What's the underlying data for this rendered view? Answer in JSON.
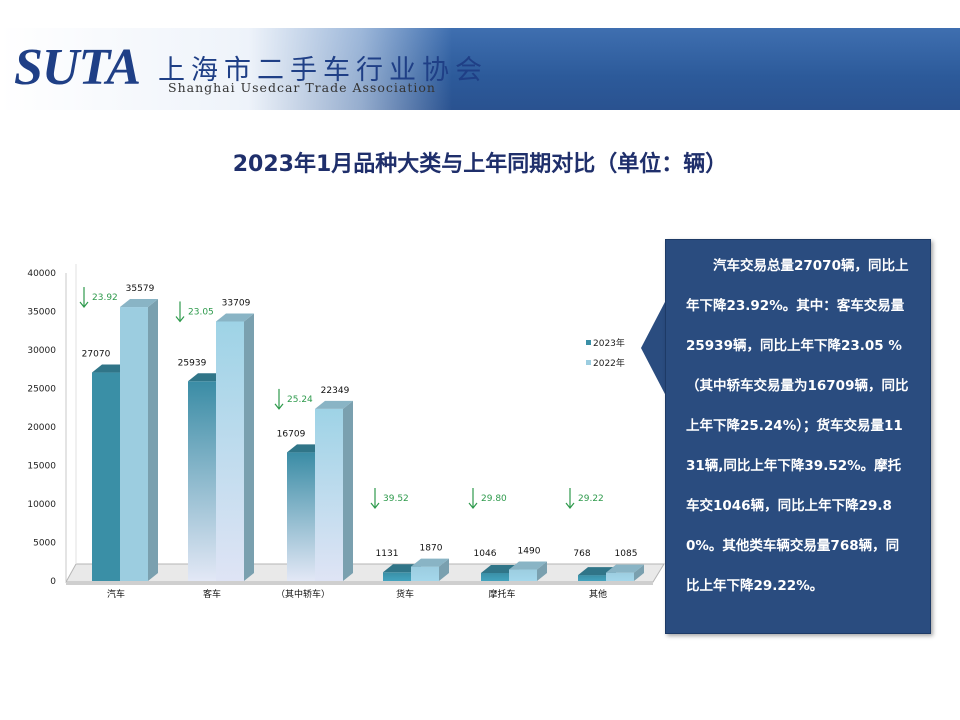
{
  "header": {
    "logo_text": "SUTA",
    "org_name_cn": "上海市二手车行业协会",
    "org_name_en": "Shanghai Usedcar Trade Association"
  },
  "title": "2023年1月品种大类与上年同期对比（单位：辆）",
  "note": "汽车交易总量27070辆，同比上年下降23.92%。其中：客车交易量25939辆，同比上年下降23.05 %（其中轿车交易量为16709辆，同比上年下降25.24%）；货车交易量1131辆,同比上年下降39.52%。摩托车交1046辆，同比上年下降29.80%。其他类车辆交易量768辆，同比上年下降29.22%。",
  "chart_data": {
    "type": "bar",
    "categories": [
      "汽车",
      "客车",
      "（其中轿车）",
      "货车",
      "摩托车",
      "其他"
    ],
    "series": [
      {
        "name": "2023年",
        "values": [
          27070,
          25939,
          16709,
          1131,
          1046,
          768
        ]
      },
      {
        "name": "2022年",
        "values": [
          35579,
          33709,
          22349,
          1870,
          1490,
          1085
        ]
      }
    ],
    "decline_pct": [
      "23.92",
      "23.05",
      "25.24",
      "39.52",
      "29.80",
      "29.22"
    ],
    "ylim": [
      0,
      40000
    ],
    "yticks": [
      0,
      5000,
      10000,
      15000,
      20000,
      25000,
      30000,
      35000,
      40000
    ],
    "legend_position": "right",
    "colors": {
      "2023": "#3a8fa6",
      "2022": "#9ccde0",
      "passenger_2023_top": "#3a8ca5",
      "passenger_2023_bottom": "#e3e8f6",
      "passenger_2022_top": "#9ed3e6",
      "passenger_2022_bottom": "#dfe4f5",
      "arrow": "#2e9a4c"
    },
    "style": "3d",
    "grid": false
  }
}
